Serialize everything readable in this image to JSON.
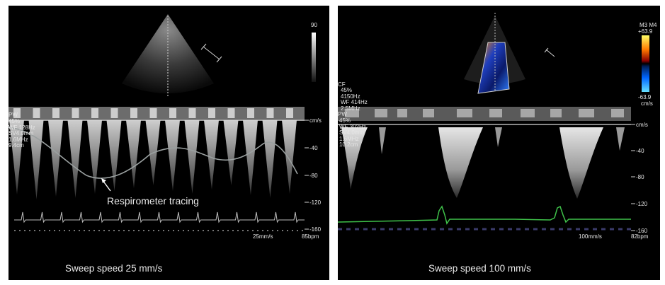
{
  "left": {
    "mode_label": "PW",
    "settings": [
      "45%",
      "WF 128Hz",
      "SV4.0mm",
      "1.6MHz",
      "9.4cm"
    ],
    "probe_mark": "90",
    "unit": "cm/s",
    "ticks": [
      "-40",
      "-80",
      "-120",
      "-160"
    ],
    "sweep_readout": "25mm/s",
    "hr_readout": "85bpm",
    "annotation": "Respirometer tracing",
    "caption": "Sweep speed 25 mm/s"
  },
  "right": {
    "cf_label": "CF",
    "cf_settings": [
      "45%",
      "4150Hz",
      "WF 414Hz",
      "2.5MHz"
    ],
    "mode_label": "PW",
    "settings": [
      "45%",
      "WF 302Hz",
      "SV4.0mm",
      "1.6MHz",
      "10.2cm"
    ],
    "scale_header": "M3 M4",
    "scale_top": "+63.9",
    "scale_bottom": "-63.9",
    "scale_unit": "cm/s",
    "unit": "cm/s",
    "ticks": [
      "-40",
      "-80",
      "-120",
      "-160"
    ],
    "sweep_readout": "100mm/s",
    "hr_readout": "82bpm",
    "caption": "Sweep speed 100 mm/s"
  }
}
